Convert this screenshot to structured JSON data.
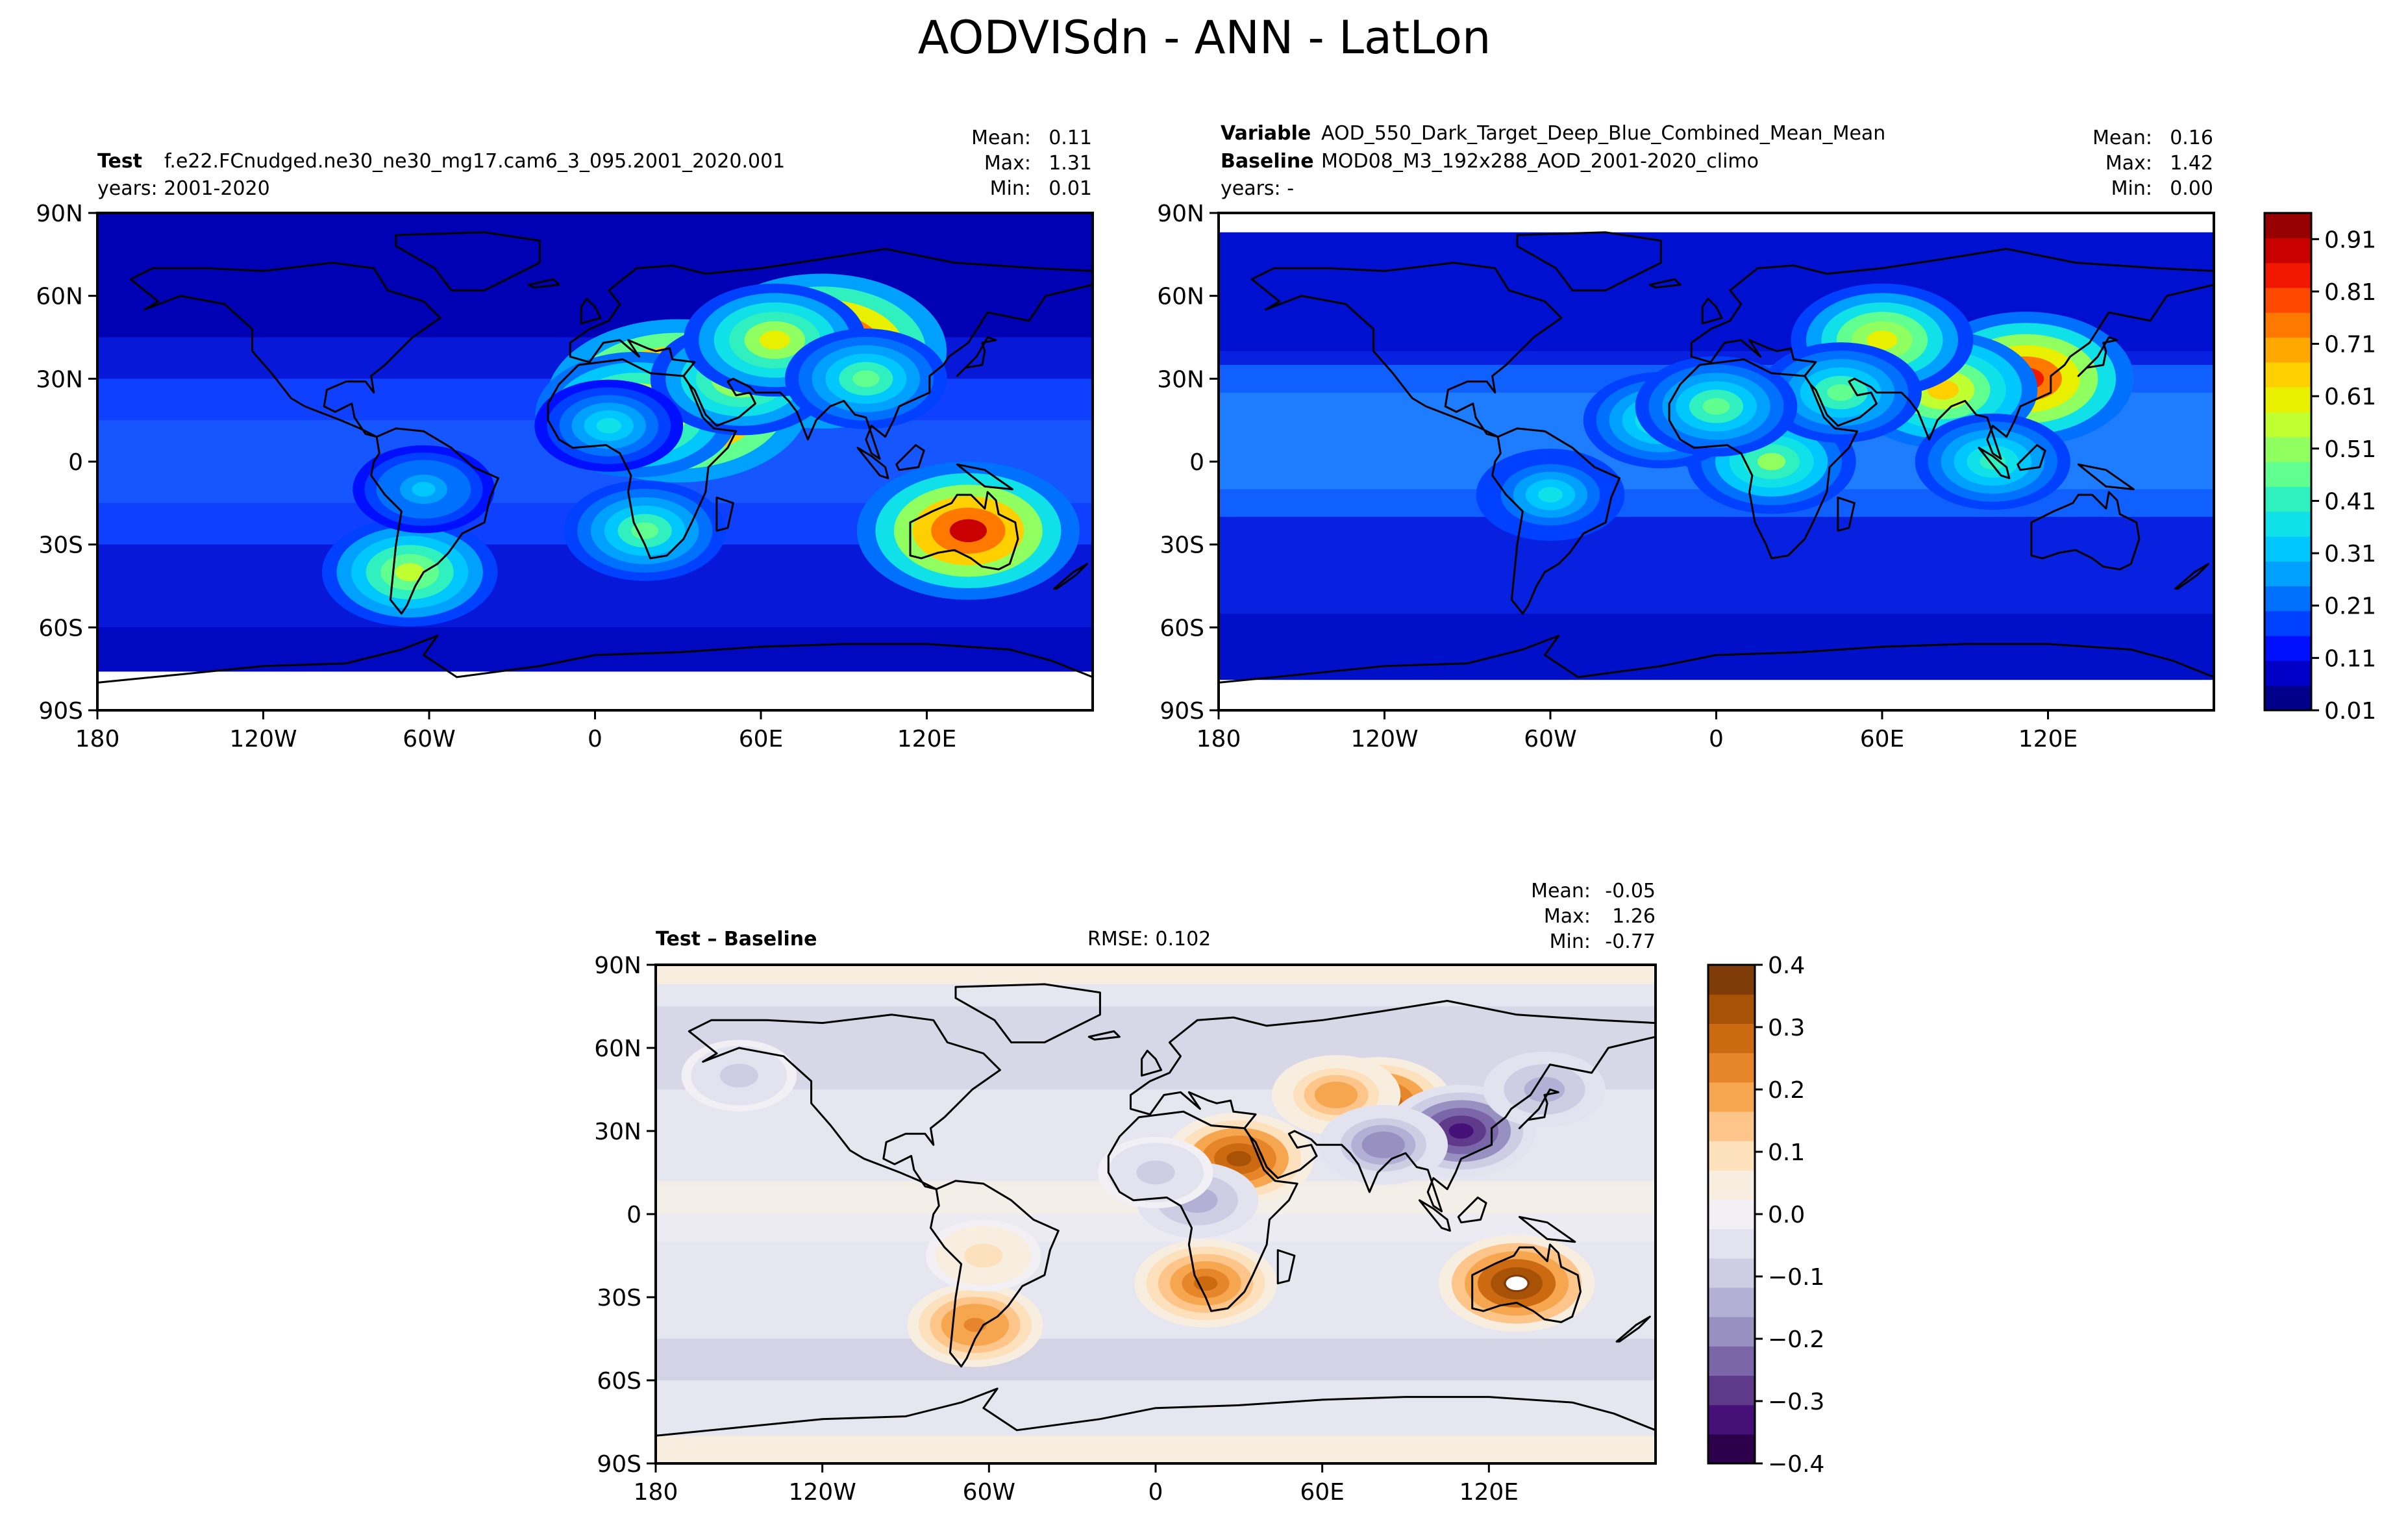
{
  "figure": {
    "title": "AODVISdn - ANN - LatLon"
  },
  "chart_data": [
    {
      "type": "heatmap",
      "panel": "test",
      "header": {
        "label": "Test",
        "case": "f.e22.FCnudged.ne30_ne30_mg17.cam6_3_095.2001_2020.001",
        "years": "years: 2001-2020"
      },
      "stats": [
        {
          "label": "Mean:",
          "value": "0.11"
        },
        {
          "label": "Max:",
          "value": "1.31"
        },
        {
          "label": "Min:",
          "value": "0.01"
        }
      ],
      "x_ticks": [
        "180",
        "120W",
        "60W",
        "0",
        "60E",
        "120E"
      ],
      "y_ticks": [
        "90N",
        "60N",
        "30N",
        "0",
        "30S",
        "60S",
        "90S"
      ],
      "xlim": [
        -180,
        180
      ],
      "ylim": [
        -90,
        90
      ],
      "blobs": [
        {
          "lon": 30,
          "lat": 22,
          "value": 1.2
        },
        {
          "lon": 82,
          "lat": 40,
          "value": 1.1
        },
        {
          "lon": 15,
          "lat": 17,
          "value": 0.75
        },
        {
          "lon": 53,
          "lat": 30,
          "value": 0.6
        },
        {
          "lon": 65,
          "lat": 44,
          "value": 0.6
        },
        {
          "lon": 135,
          "lat": -25,
          "value": 0.9
        },
        {
          "lon": -67,
          "lat": -40,
          "value": 0.55
        },
        {
          "lon": 18,
          "lat": -25,
          "value": 0.45
        },
        {
          "lon": 98,
          "lat": 30,
          "value": 0.45
        },
        {
          "lon": 5,
          "lat": 13,
          "value": 0.35
        },
        {
          "lon": -62,
          "lat": -10,
          "value": 0.3
        }
      ]
    },
    {
      "type": "heatmap",
      "panel": "baseline",
      "header": {
        "variable_label": "Variable",
        "variable": "AOD_550_Dark_Target_Deep_Blue_Combined_Mean_Mean",
        "baseline_label": "Baseline",
        "baseline": "MOD08_M3_192x288_AOD_2001-2020_climo",
        "years": "years: -"
      },
      "stats": [
        {
          "label": "Mean:",
          "value": "0.16"
        },
        {
          "label": "Max:",
          "value": "1.42"
        },
        {
          "label": "Min:",
          "value": "0.00"
        }
      ],
      "x_ticks": [
        "180",
        "120W",
        "60W",
        "0",
        "60E",
        "120E"
      ],
      "y_ticks": [
        "90N",
        "60N",
        "30N",
        "0",
        "30S",
        "60S",
        "90S"
      ],
      "xlim": [
        -180,
        180
      ],
      "ylim": [
        -90,
        90
      ],
      "colorbar": {
        "ticks": [
          "0.01",
          "0.11",
          "0.21",
          "0.31",
          "0.41",
          "0.51",
          "0.61",
          "0.71",
          "0.81",
          "0.91"
        ],
        "range": [
          0.01,
          0.96
        ],
        "colors": [
          "#00008b",
          "#0000c8",
          "#0010ff",
          "#0040ff",
          "#0070ff",
          "#00a0ff",
          "#00c8ff",
          "#10e0e8",
          "#30f0c0",
          "#60ff90",
          "#90ff60",
          "#c0ff30",
          "#e8f000",
          "#ffd000",
          "#ffa800",
          "#ff7800",
          "#ff4800",
          "#f01800",
          "#c80000",
          "#960000"
        ]
      },
      "blobs": [
        {
          "lon": 112,
          "lat": 30,
          "value": 0.85
        },
        {
          "lon": 82,
          "lat": 26,
          "value": 0.65
        },
        {
          "lon": 12,
          "lat": 12,
          "value": 0.55
        },
        {
          "lon": 20,
          "lat": 0,
          "value": 0.5
        },
        {
          "lon": 60,
          "lat": 44,
          "value": 0.6
        },
        {
          "lon": 45,
          "lat": 25,
          "value": 0.45
        },
        {
          "lon": -20,
          "lat": 15,
          "value": 0.4
        },
        {
          "lon": -60,
          "lat": -12,
          "value": 0.35
        },
        {
          "lon": 100,
          "lat": 0,
          "value": 0.4
        },
        {
          "lon": 0,
          "lat": 20,
          "value": 0.45
        }
      ]
    },
    {
      "type": "heatmap",
      "panel": "difference",
      "header": {
        "label": "Test – Baseline",
        "rmse": "RMSE: 0.102"
      },
      "stats": [
        {
          "label": "Mean:",
          "value": "-0.05"
        },
        {
          "label": "Max:",
          "value": "1.26"
        },
        {
          "label": "Min:",
          "value": "-0.77"
        }
      ],
      "x_ticks": [
        "180",
        "120W",
        "60W",
        "0",
        "60E",
        "120E"
      ],
      "y_ticks": [
        "90N",
        "60N",
        "30N",
        "0",
        "30S",
        "60S",
        "90S"
      ],
      "xlim": [
        -180,
        180
      ],
      "ylim": [
        -90,
        90
      ],
      "colorbar": {
        "ticks": [
          "0.4",
          "0.3",
          "0.2",
          "0.1",
          "0.0",
          "−0.1",
          "−0.2",
          "−0.3",
          "−0.4"
        ],
        "range": [
          -0.4,
          0.4
        ],
        "colors": [
          "#2d004b",
          "#451077",
          "#5f3a8a",
          "#7a66a8",
          "#9890c0",
          "#b4afd4",
          "#cfcde4",
          "#e3e3ef",
          "#f2f0f4",
          "#f7eee0",
          "#fde0bc",
          "#fdc58a",
          "#f6a64f",
          "#e6852a",
          "#cc6a12",
          "#a85208",
          "#7f3b08"
        ]
      },
      "blobs": [
        {
          "lon": 130,
          "lat": -25,
          "value": 0.4
        },
        {
          "lon": 30,
          "lat": 20,
          "value": 0.35
        },
        {
          "lon": 80,
          "lat": 40,
          "value": 0.35
        },
        {
          "lon": 18,
          "lat": -25,
          "value": 0.3
        },
        {
          "lon": -65,
          "lat": -40,
          "value": 0.25
        },
        {
          "lon": 65,
          "lat": 43,
          "value": 0.2
        },
        {
          "lon": -62,
          "lat": -15,
          "value": 0.1
        },
        {
          "lon": 110,
          "lat": 30,
          "value": -0.35
        },
        {
          "lon": 82,
          "lat": 25,
          "value": -0.2
        },
        {
          "lon": 15,
          "lat": 5,
          "value": -0.15
        },
        {
          "lon": 0,
          "lat": 15,
          "value": -0.1
        },
        {
          "lon": 140,
          "lat": 45,
          "value": -0.15
        },
        {
          "lon": -150,
          "lat": 50,
          "value": -0.1
        }
      ]
    }
  ]
}
